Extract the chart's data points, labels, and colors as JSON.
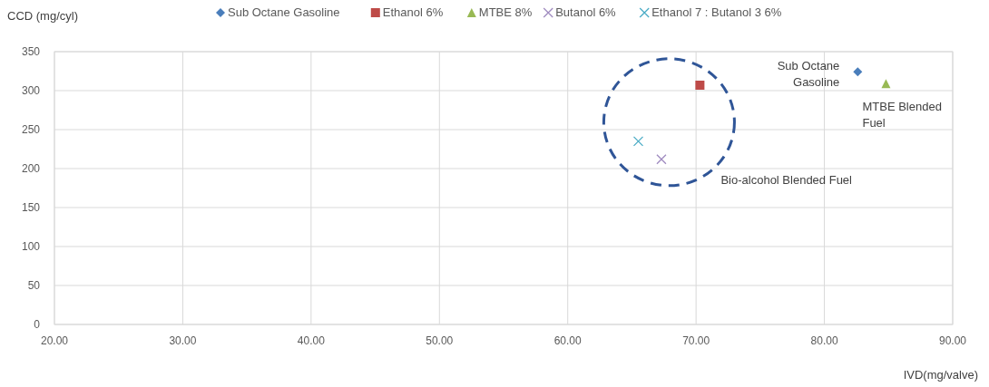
{
  "chart_data": {
    "type": "scatter",
    "xlabel": "IVD(mg/valve)",
    "ylabel": "CCD (mg/cyl)",
    "xlim": [
      20,
      90
    ],
    "xticks": [
      {
        "value": 20,
        "label": "20.00"
      },
      {
        "value": 30,
        "label": "30.00"
      },
      {
        "value": 40,
        "label": "40.00"
      },
      {
        "value": 50,
        "label": "50.00"
      },
      {
        "value": 60,
        "label": "60.00"
      },
      {
        "value": 70,
        "label": "70.00"
      },
      {
        "value": 80,
        "label": "80.00"
      },
      {
        "value": 90,
        "label": "90.00"
      }
    ],
    "ylim": [
      0,
      350
    ],
    "yticks": [
      0,
      50,
      100,
      150,
      200,
      250,
      300,
      350
    ],
    "grid": true,
    "legend": "top",
    "series": [
      {
        "name": "Sub Octane Gasoline",
        "color": "#4a7ebb",
        "marker": "diamond",
        "x": [
          82.6
        ],
        "values": [
          324
        ]
      },
      {
        "name": "Ethanol 6%",
        "color": "#be4b48",
        "marker": "square",
        "x": [
          70.3
        ],
        "values": [
          307
        ]
      },
      {
        "name": "MTBE 8%",
        "color": "#98b954",
        "marker": "triangle",
        "x": [
          84.8
        ],
        "values": [
          309
        ]
      },
      {
        "name": "Butanol 6%",
        "color": "#a08cc0",
        "marker": "cross",
        "x": [
          67.3
        ],
        "values": [
          212
        ]
      },
      {
        "name": "Ethanol 7 : Butanol 3 6%",
        "color": "#4bacc6",
        "marker": "cross",
        "x": [
          65.5
        ],
        "values": [
          235
        ]
      }
    ],
    "annotations": [
      {
        "text": "Sub Octane Gasoline",
        "x": 82.6,
        "y": 324
      },
      {
        "text": "MTBE Blended Fuel",
        "x": 84.8,
        "y": 309
      },
      "Bio-alcohol Blended Fuel"
    ]
  }
}
